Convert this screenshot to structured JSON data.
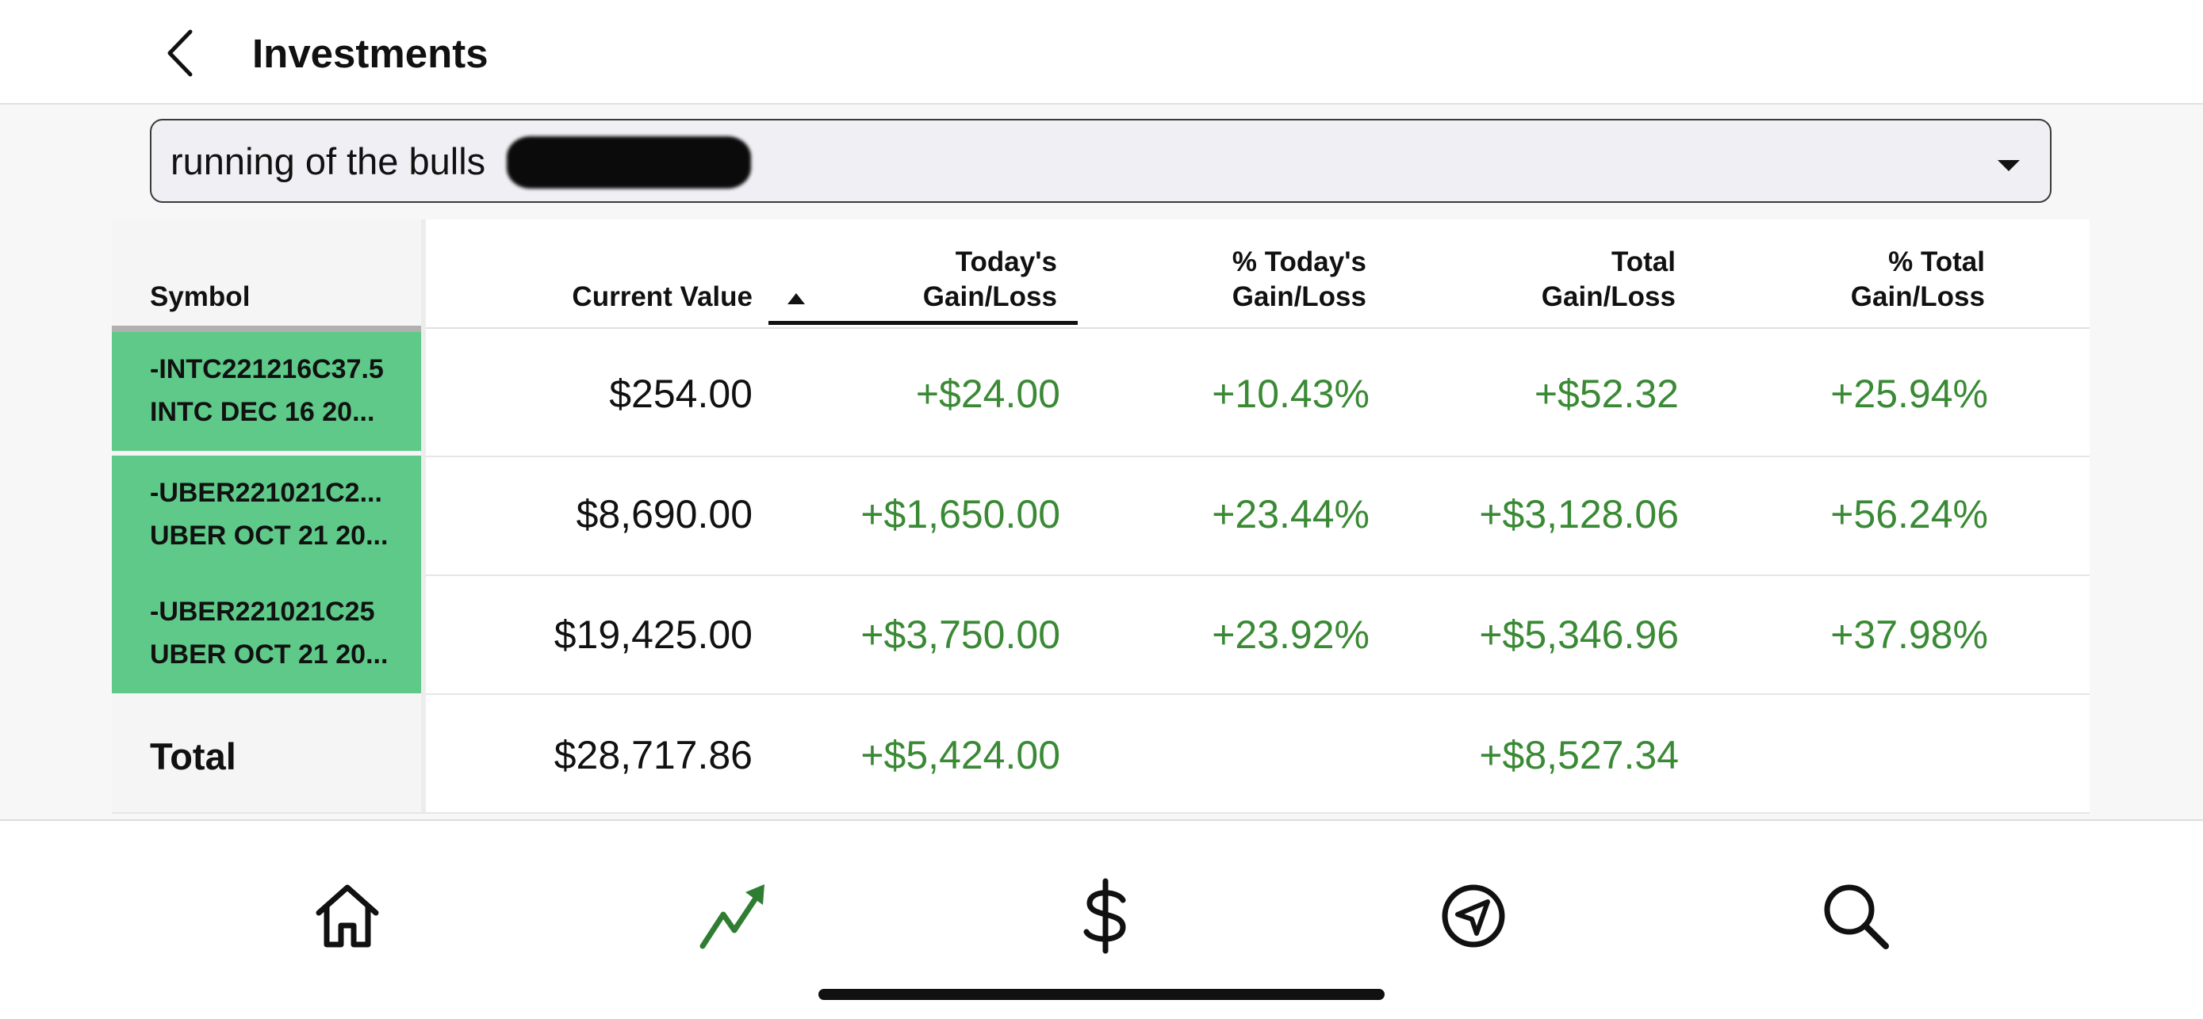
{
  "header": {
    "title": "Investments"
  },
  "account_select": {
    "value": "running of the bulls"
  },
  "table": {
    "columns": [
      {
        "line1": "",
        "line2": "Symbol"
      },
      {
        "line1": "",
        "line2": "Current Value"
      },
      {
        "line1": "Today's",
        "line2": "Gain/Loss"
      },
      {
        "line1": "% Today's",
        "line2": "Gain/Loss"
      },
      {
        "line1": "Total",
        "line2": "Gain/Loss"
      },
      {
        "line1": "% Total",
        "line2": "Gain/Loss"
      }
    ],
    "rows": [
      {
        "symbol": "-INTC221216C37.5",
        "description": "INTC DEC 16 20...",
        "current_value": "$254.00",
        "today_gain": "+$24.00",
        "today_pct": "+10.43%",
        "total_gain": "+$52.32",
        "total_pct": "+25.94%"
      },
      {
        "symbol": "-UBER221021C2...",
        "description": "UBER OCT 21 20...",
        "current_value": "$8,690.00",
        "today_gain": "+$1,650.00",
        "today_pct": "+23.44%",
        "total_gain": "+$3,128.06",
        "total_pct": "+56.24%"
      },
      {
        "symbol": "-UBER221021C25",
        "description": "UBER OCT 21 20...",
        "current_value": "$19,425.00",
        "today_gain": "+$3,750.00",
        "today_pct": "+23.92%",
        "total_gain": "+$5,346.96",
        "total_pct": "+37.98%"
      }
    ],
    "total": {
      "label": "Total",
      "current_value": "$28,717.86",
      "today_gain": "+$5,424.00",
      "total_gain": "+$8,527.34"
    }
  },
  "nav": {
    "items": [
      {
        "icon": "home-icon"
      },
      {
        "icon": "trend-chart-icon",
        "active": true
      },
      {
        "icon": "dollar-icon"
      },
      {
        "icon": "navigate-icon"
      },
      {
        "icon": "search-icon"
      }
    ]
  },
  "colors": {
    "gain": "#3a8a35",
    "symbol_bg": "#5ec988",
    "active_nav": "#2f7d32"
  }
}
